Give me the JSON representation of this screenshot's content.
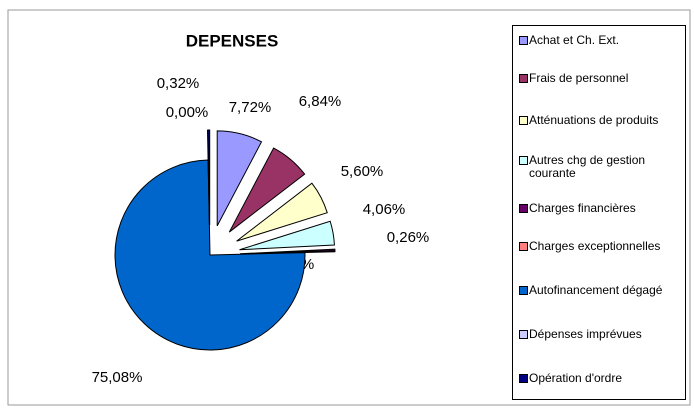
{
  "chart_data": {
    "type": "pie",
    "title": "DEPENSES",
    "categories": [
      "Achat et Ch. Ext.",
      "Frais de personnel",
      "Atténuations de produits",
      "Autres chg de gestion courante",
      "Charges financières",
      "Charges exceptionnelles",
      "Autofinancement dégagé",
      "Dépenses imprévues",
      "Opération d'ordre"
    ],
    "values": [
      7.72,
      6.84,
      5.6,
      4.06,
      0.26,
      0.13,
      75.08,
      0.0,
      0.32
    ],
    "value_labels": [
      "7,72%",
      "6,84%",
      "5,60%",
      "4,06%",
      "0,26%",
      "0,13%",
      "75,08%",
      "0,00%",
      "0,32%"
    ],
    "colors": [
      "#9999ff",
      "#993366",
      "#ffffcc",
      "#ccffff",
      "#660066",
      "#ff8080",
      "#0066cc",
      "#ccccff",
      "#000080"
    ],
    "legend": "right"
  }
}
